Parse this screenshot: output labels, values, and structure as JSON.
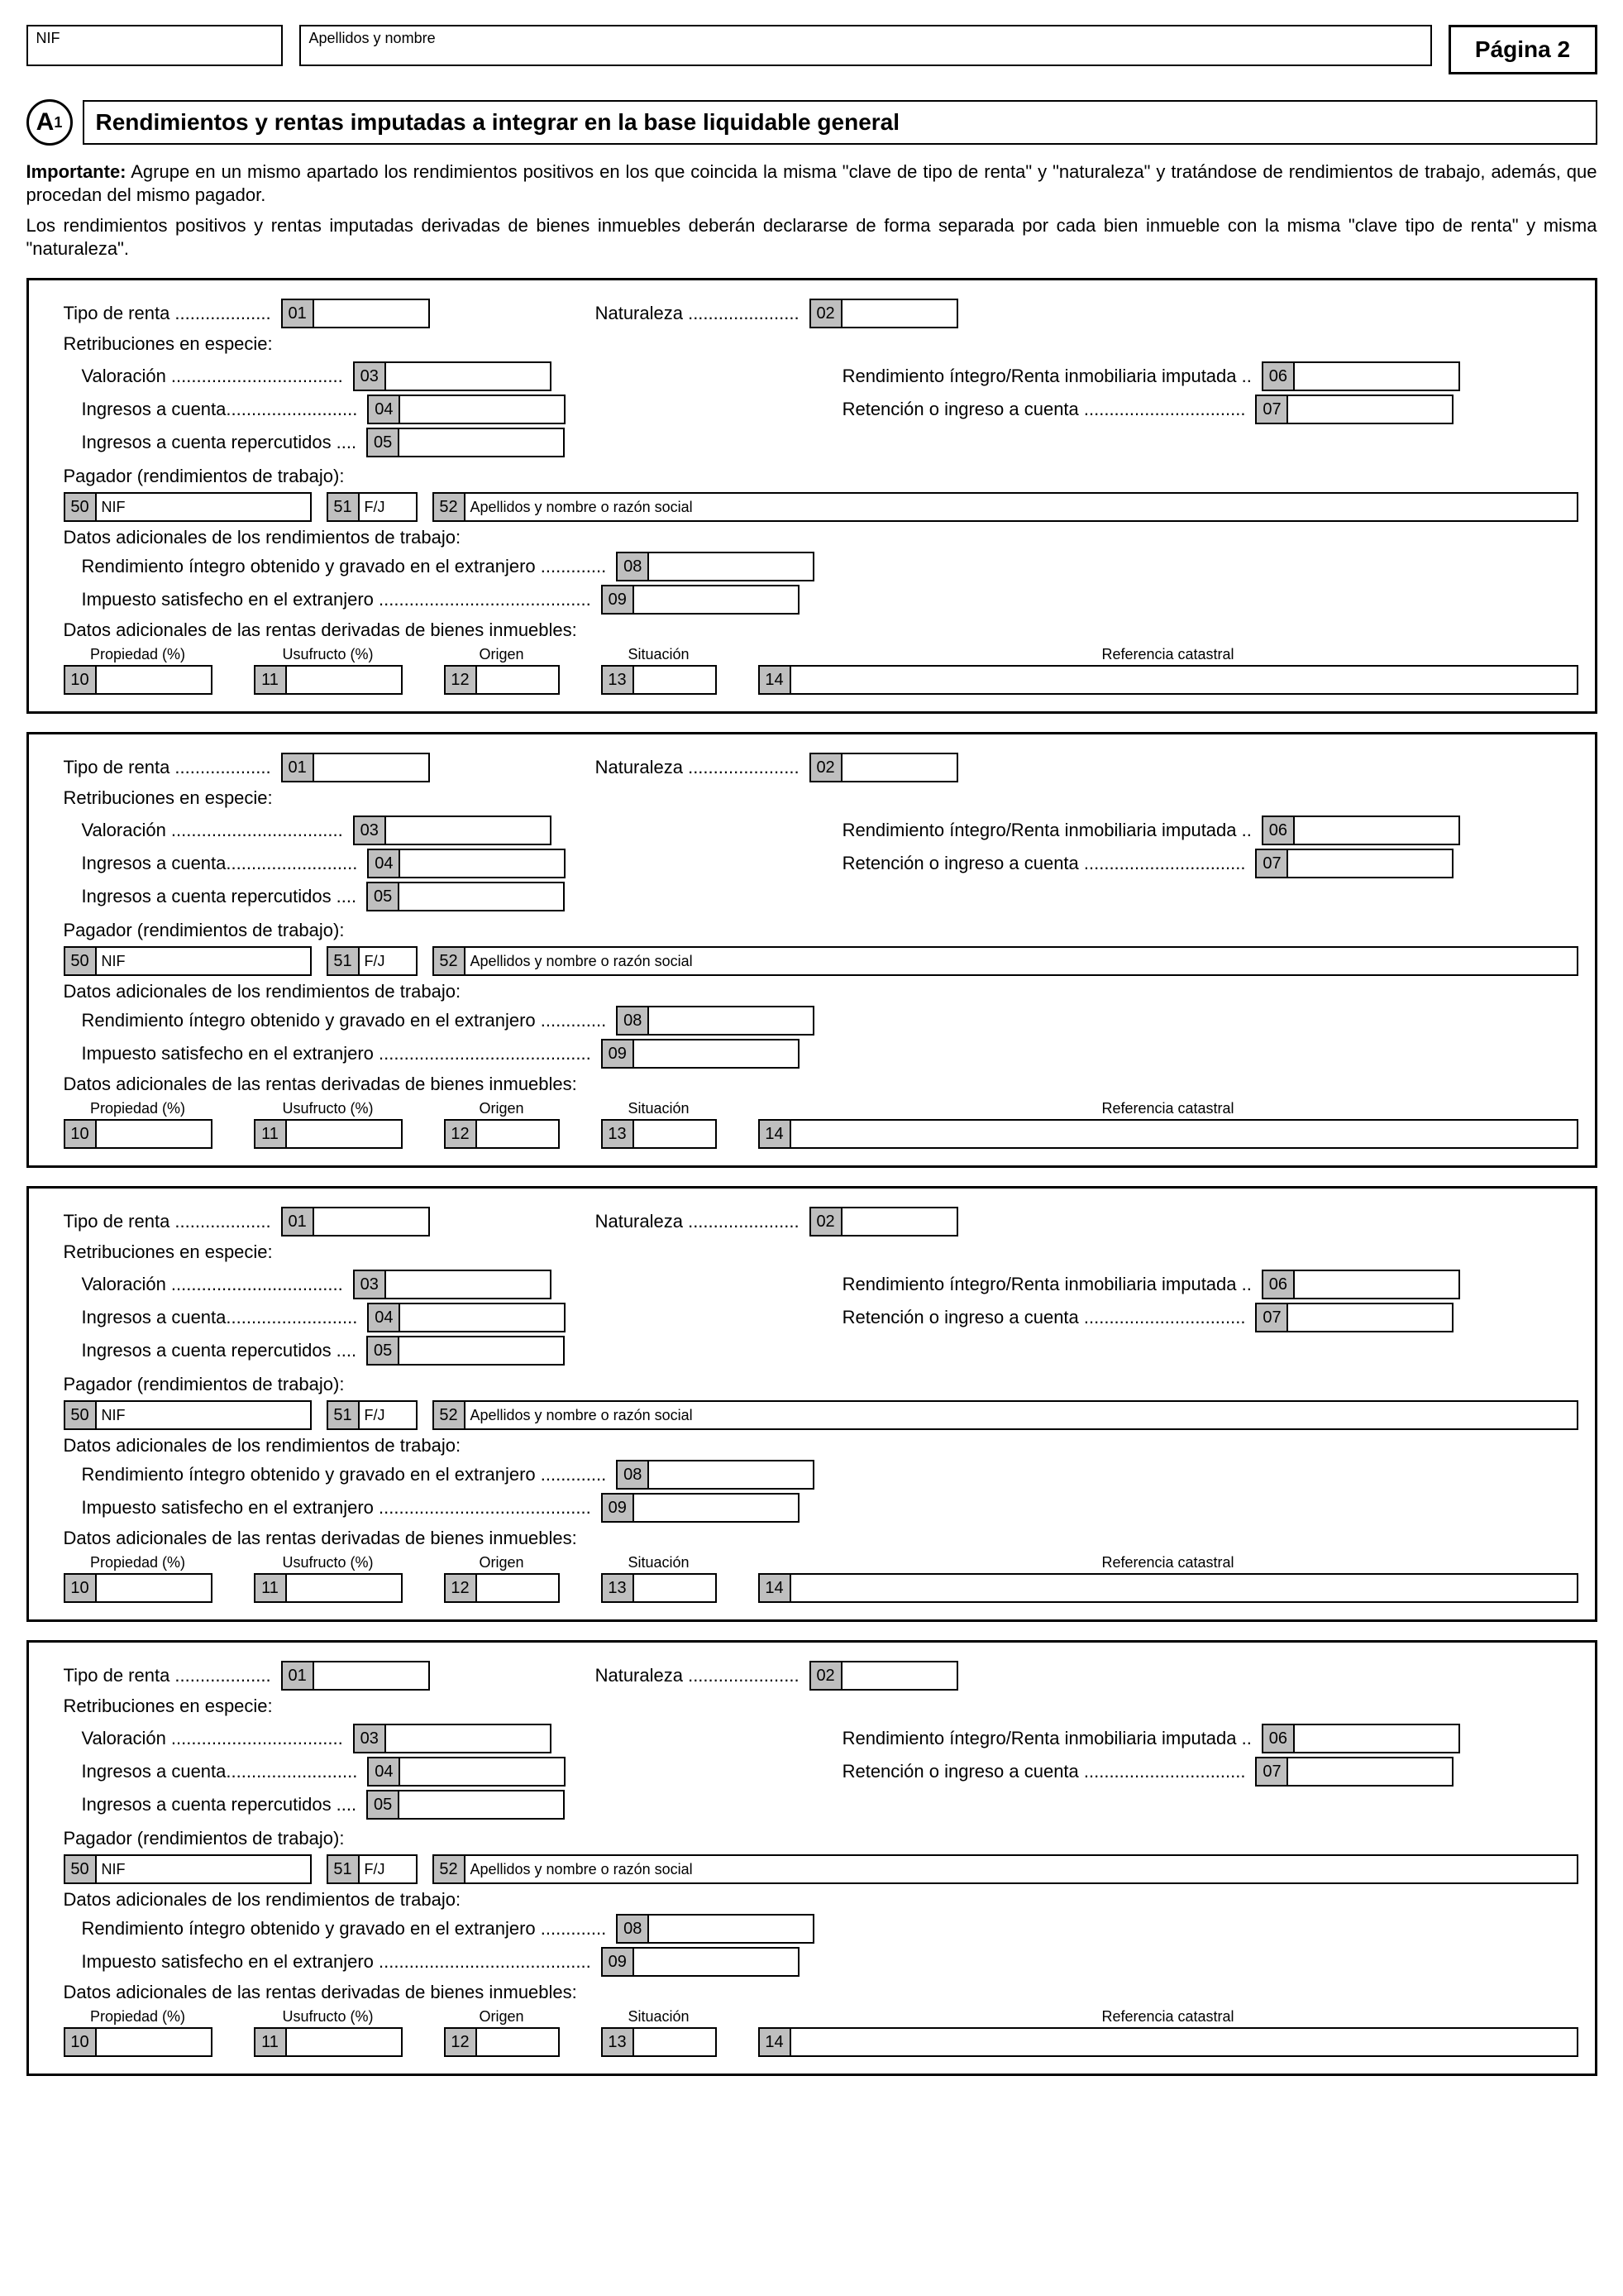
{
  "header": {
    "nif_placeholder": "NIF",
    "name_placeholder": "Apellidos y nombre",
    "page_label": "Página 2"
  },
  "section": {
    "badge": "A",
    "badge_sub": "1",
    "title": "Rendimientos y rentas imputadas a integrar en la base liquidable general",
    "intro1_bold": "Importante:",
    "intro1_rest": " Agrupe en un mismo apartado los rendimientos positivos en los que coincida la misma \"clave de tipo de renta\" y \"naturaleza\" y tratándose de rendimientos de trabajo, además, que procedan del mismo pagador.",
    "intro2": "Los rendimientos positivos y rentas imputadas derivadas de bienes inmuebles deberán declararse de forma separada por cada bien inmueble con la misma \"clave tipo de renta\" y misma \"naturaleza\"."
  },
  "labels": {
    "tipo_renta": "Tipo de renta  ...................",
    "naturaleza": "Naturaleza  ......................",
    "retrib_especie": "Retribuciones en especie:",
    "valoracion": "Valoración  ..................................",
    "ingresos_cuenta": "Ingresos a cuenta..........................",
    "ingresos_rep": "Ingresos a cuenta repercutidos ....",
    "rend_integro": "Rendimiento íntegro/Renta inmobiliaria imputada ..",
    "retencion": "Retención o ingreso a cuenta ................................",
    "pagador": "Pagador (rendimientos de trabajo):",
    "nif_small": "NIF",
    "fj_small": "F/J",
    "razon_small": "Apellidos y nombre o razón social",
    "datos_trabajo": "Datos adicionales de los rendimientos de trabajo:",
    "rend_extranjero": "Rendimiento íntegro obtenido y gravado en el extranjero  .............",
    "impuesto_ext": "Impuesto satisfecho en el extranjero  ..........................................",
    "datos_inmuebles": "Datos adicionales de las rentas derivadas de bienes inmuebles:",
    "propiedad": "Propiedad (%)",
    "usufructo": "Usufructo (%)",
    "origen": "Origen",
    "situacion": "Situación",
    "ref_catastral": "Referencia catastral"
  },
  "codes": {
    "c01": "01",
    "c02": "02",
    "c03": "03",
    "c04": "04",
    "c05": "05",
    "c06": "06",
    "c07": "07",
    "c08": "08",
    "c09": "09",
    "c10": "10",
    "c11": "11",
    "c12": "12",
    "c13": "13",
    "c14": "14",
    "c50": "50",
    "c51": "51",
    "c52": "52"
  },
  "style": {
    "code_bg": "#bfbfbf",
    "border_color": "#000000",
    "background": "#ffffff",
    "font_family": "Arial",
    "title_fontsize_pt": 21,
    "body_fontsize_pt": 16,
    "small_fontsize_pt": 13,
    "block_count": 4
  }
}
